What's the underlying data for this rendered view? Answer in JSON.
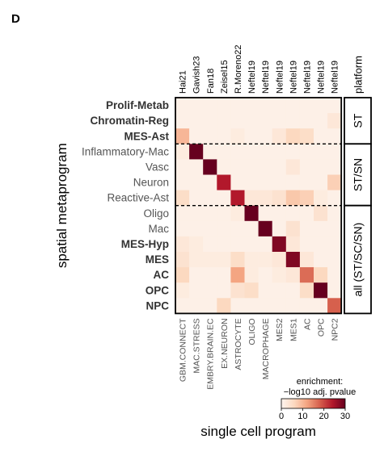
{
  "panel_label": "D",
  "chart_data": {
    "type": "heatmap",
    "xlabel": "single cell program",
    "ylabel": "spatial metaprogram",
    "platform_header": "platform",
    "top_labels": [
      "Hai21",
      "Gavish23",
      "Fan18",
      "Zeisel15",
      "R.Moreno22",
      "Neftel19",
      "Neftel19",
      "Neftel19",
      "Neftel19",
      "Neftel19",
      "Neftel19",
      "Neftel19"
    ],
    "columns": [
      "GBM.CONNECT",
      "MAC.STRESS",
      "EMBRY.BRAIN.EC",
      "EX.NEURON",
      "ASTROCYTE",
      "OLIGO",
      "MACROPHAGE",
      "MES2",
      "MES1",
      "AC",
      "OPC",
      "NPC2"
    ],
    "rows": [
      {
        "label": "Prolif-Metab",
        "bold": true
      },
      {
        "label": "Chromatin-Reg",
        "bold": true
      },
      {
        "label": "MES-Ast",
        "bold": true
      },
      {
        "label": "Inflammatory-Mac",
        "bold": false
      },
      {
        "label": "Vasc",
        "bold": false
      },
      {
        "label": "Neuron",
        "bold": false
      },
      {
        "label": "Reactive-Ast",
        "bold": false
      },
      {
        "label": "Oligo",
        "bold": false
      },
      {
        "label": "Mac",
        "bold": false
      },
      {
        "label": "MES-Hyp",
        "bold": true
      },
      {
        "label": "MES",
        "bold": true
      },
      {
        "label": "AC",
        "bold": true
      },
      {
        "label": "OPC",
        "bold": true
      },
      {
        "label": "NPC",
        "bold": true
      }
    ],
    "values": [
      [
        1,
        1,
        1,
        1,
        1,
        1,
        1,
        1,
        1,
        1,
        1,
        1
      ],
      [
        1,
        1,
        1,
        1,
        1,
        1,
        1,
        1,
        1,
        1,
        1,
        3
      ],
      [
        10,
        1,
        1,
        1,
        2,
        1,
        1,
        3,
        6,
        5,
        1,
        1
      ],
      [
        2,
        30,
        1,
        1,
        1,
        1,
        1,
        1,
        1,
        1,
        1,
        1
      ],
      [
        1,
        1,
        30,
        1,
        1,
        1,
        1,
        1,
        3,
        1,
        1,
        1
      ],
      [
        1,
        1,
        1,
        24,
        1,
        1,
        1,
        1,
        1,
        1,
        1,
        7
      ],
      [
        5,
        1,
        1,
        1,
        24,
        3,
        3,
        4,
        8,
        7,
        2,
        1
      ],
      [
        1,
        1,
        1,
        1,
        2,
        30,
        1,
        1,
        1,
        1,
        4,
        1
      ],
      [
        1,
        1,
        1,
        1,
        1,
        1,
        30,
        1,
        4,
        1,
        1,
        1
      ],
      [
        3,
        2,
        1,
        1,
        1,
        1,
        1,
        28,
        3,
        1,
        1,
        1
      ],
      [
        4,
        2,
        2,
        2,
        5,
        2,
        2,
        3,
        28,
        3,
        1,
        1
      ],
      [
        6,
        1,
        1,
        1,
        12,
        2,
        1,
        2,
        3,
        17,
        6,
        1
      ],
      [
        2,
        1,
        1,
        1,
        4,
        5,
        1,
        1,
        1,
        5,
        30,
        1
      ],
      [
        1,
        1,
        1,
        6,
        1,
        1,
        1,
        1,
        1,
        1,
        1,
        18
      ]
    ],
    "dashed_separators_after_row": [
      2,
      6
    ],
    "platform_groups": [
      {
        "label": "ST",
        "rows": [
          0,
          2
        ]
      },
      {
        "label": "ST/SN",
        "rows": [
          3,
          6
        ]
      },
      {
        "label": "all (ST/SC/SN)",
        "rows": [
          7,
          13
        ]
      }
    ],
    "colorbar": {
      "title_line1": "enrichment:",
      "title_line2": "−log10 adj. pvalue",
      "range": [
        0,
        30
      ],
      "ticks": [
        0,
        10,
        20,
        30
      ],
      "colors": [
        "#fdf5ef",
        "#fcd9c0",
        "#f4a582",
        "#d6604d",
        "#b2182b",
        "#67001f"
      ]
    }
  }
}
